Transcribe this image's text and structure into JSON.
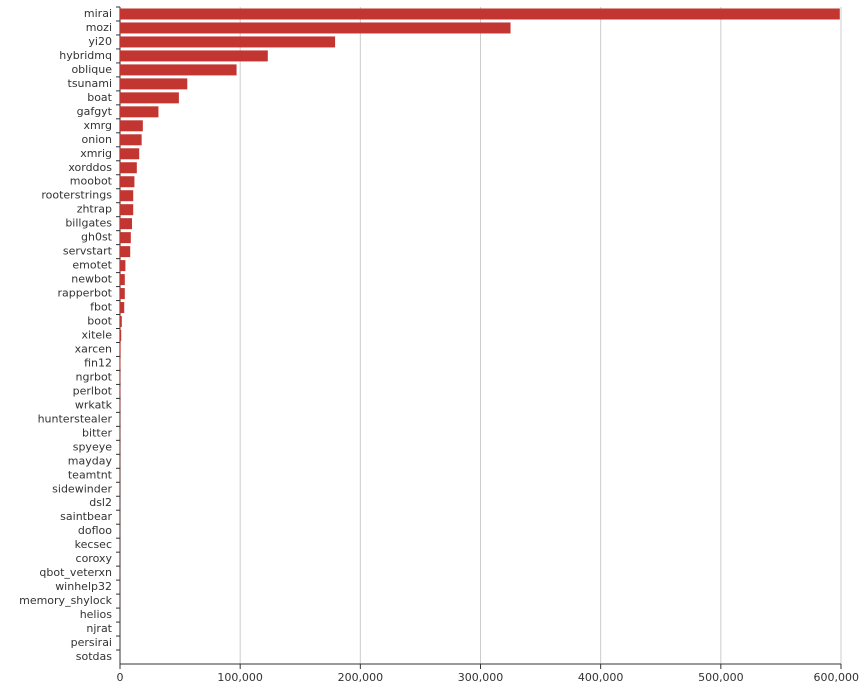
{
  "chart_data": {
    "type": "bar",
    "orientation": "horizontal",
    "color": "#c23531",
    "grid": true,
    "categories": [
      "mirai",
      "mozi",
      "yi20",
      "hybridmq",
      "oblique",
      "tsunami",
      "boat",
      "gafgyt",
      "xmrg",
      "onion",
      "xmrig",
      "xorddos",
      "moobot",
      "rooterstrings",
      "zhtrap",
      "billgates",
      "gh0st",
      "servstart",
      "emotet",
      "newbot",
      "rapperbot",
      "fbot",
      "boot",
      "xitele",
      "xarcen",
      "fin12",
      "ngrbot",
      "perlbot",
      "wrkatk",
      "hunterstealer",
      "bitter",
      "spyeye",
      "mayday",
      "teamtnt",
      "sidewinder",
      "dsl2",
      "saintbear",
      "dofloo",
      "kecsec",
      "coroxy",
      "qbot_veterxn",
      "winhelp32",
      "memory_shylock",
      "helios",
      "njrat",
      "persirai",
      "sotdas"
    ],
    "values": [
      599000,
      325000,
      179000,
      123000,
      97000,
      56000,
      49000,
      32000,
      19000,
      18000,
      16000,
      14000,
      12000,
      11000,
      11000,
      10000,
      9000,
      8500,
      4500,
      4000,
      4000,
      3500,
      1500,
      1000,
      500,
      400,
      300,
      300,
      250,
      200,
      200,
      150,
      150,
      120,
      100,
      100,
      80,
      80,
      60,
      60,
      50,
      40,
      40,
      30,
      30,
      20,
      20
    ],
    "xlim": [
      0,
      600000
    ],
    "xticks": [
      0,
      {
        "value": 100000,
        "label": "100,000"
      },
      {
        "value": 200000,
        "label": "200,000"
      },
      {
        "value": 300000,
        "label": "300,000"
      },
      {
        "value": 400000,
        "label": "400,000"
      },
      {
        "value": 500000,
        "label": "500,000"
      },
      {
        "value": 600000,
        "label": "600,000"
      }
    ]
  }
}
